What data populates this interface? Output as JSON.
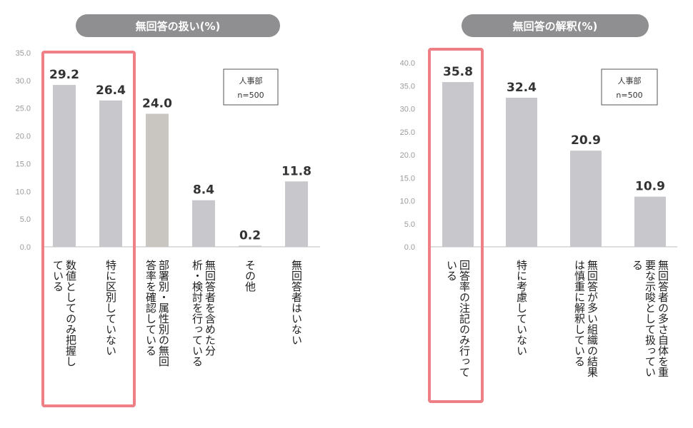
{
  "chart_data": [
    {
      "type": "bar",
      "title": "無回答の扱い(%)",
      "ylim": [
        0,
        35
      ],
      "ticks": [
        "0.0",
        "5.0",
        "10.0",
        "15.0",
        "20.0",
        "25.0",
        "30.0",
        "35.0"
      ],
      "legend": {
        "line1": "人事部",
        "line2": "n=500"
      },
      "categories": [
        [
          "数値としてのみ把握し",
          "ている"
        ],
        [
          "特に区別していない"
        ],
        [
          "部署別・属性別の無回",
          "答率を確認している"
        ],
        [
          "無回答者を含めた分",
          "析・検討を行っている"
        ],
        [
          "その他"
        ],
        [
          "無回答者はいない"
        ]
      ],
      "values": [
        29.2,
        26.4,
        24.0,
        8.4,
        0.2,
        11.8
      ],
      "value_labels": [
        "29.2",
        "26.4",
        "24.0",
        "8.4",
        "0.2",
        "11.8"
      ],
      "highlight_index": 0
    },
    {
      "type": "bar",
      "title": "無回答の解釈(%)",
      "ylim": [
        0,
        40
      ],
      "ticks": [
        "0.0",
        "5.0",
        "10.0",
        "15.0",
        "20.0",
        "25.0",
        "30.0",
        "35.0",
        "40.0"
      ],
      "legend": {
        "line1": "人事部",
        "line2": "n=500"
      },
      "categories": [
        [
          "回答率の注記のみ行って",
          "いる"
        ],
        [
          "特に考慮していない"
        ],
        [
          "無回答が多い組織の結果",
          "は慎重に解釈している"
        ],
        [
          "無回答者の多さ自体を重",
          "要な示唆として扱ってい",
          "る"
        ]
      ],
      "values": [
        35.8,
        32.4,
        20.9,
        10.9
      ],
      "value_labels": [
        "35.8",
        "32.4",
        "20.9",
        "10.9"
      ],
      "highlight_index": 0
    }
  ],
  "colors": {
    "bar": "#c8c8cc",
    "bar_alt": "#c9c6c2",
    "highlight_border": "#ef7f86",
    "title_pill": "#8f8e90",
    "axis": "#bdbdbd"
  }
}
